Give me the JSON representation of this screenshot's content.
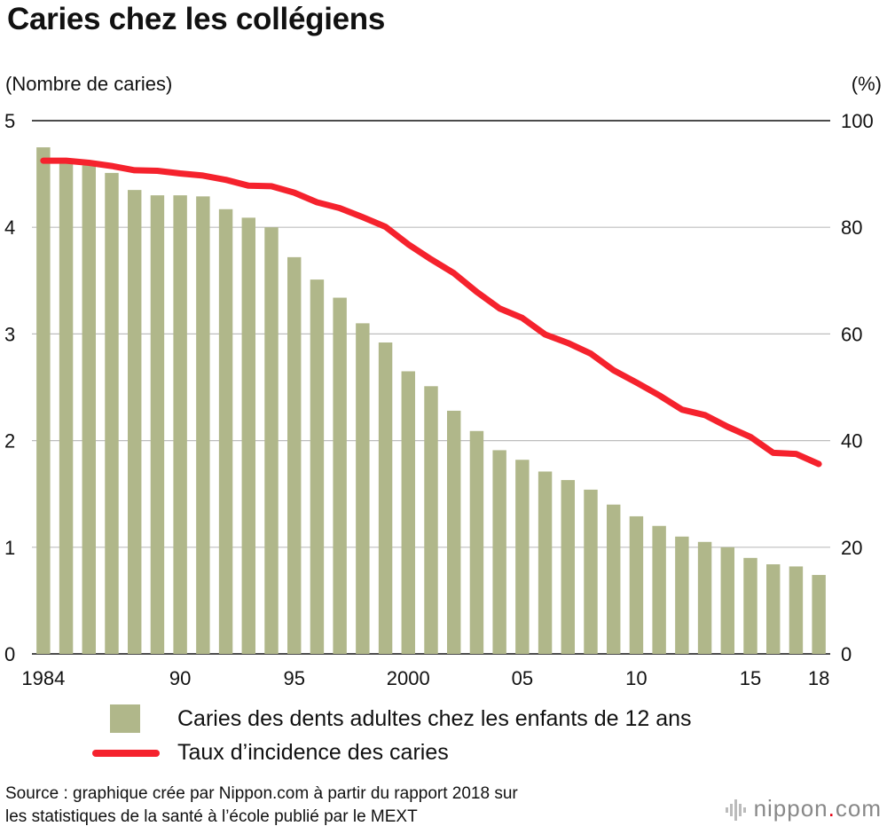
{
  "chart_data": {
    "type": "bar+line",
    "title": "Caries chez les collégiens",
    "ylabel_left": "(Nombre de caries)",
    "ylabel_right": "(%)",
    "ylim_left": [
      0,
      5
    ],
    "ylim_right": [
      0,
      100
    ],
    "yticks_left": [
      "0",
      "1",
      "2",
      "3",
      "4",
      "5"
    ],
    "yticks_right": [
      "0",
      "20",
      "40",
      "60",
      "80",
      "100"
    ],
    "years": [
      1984,
      1985,
      1986,
      1987,
      1988,
      1989,
      1990,
      1991,
      1992,
      1993,
      1994,
      1995,
      1996,
      1997,
      1998,
      1999,
      2000,
      2001,
      2002,
      2003,
      2004,
      2005,
      2006,
      2007,
      2008,
      2009,
      2010,
      2011,
      2012,
      2013,
      2014,
      2015,
      2016,
      2017,
      2018
    ],
    "xtick_labels": [
      {
        "year": 1984,
        "label": "1984"
      },
      {
        "year": 1990,
        "label": "90"
      },
      {
        "year": 1995,
        "label": "95"
      },
      {
        "year": 2000,
        "label": "2000"
      },
      {
        "year": 2005,
        "label": "05"
      },
      {
        "year": 2010,
        "label": "10"
      },
      {
        "year": 2015,
        "label": "15"
      },
      {
        "year": 2018,
        "label": "18"
      }
    ],
    "series": [
      {
        "name": "Caries des dents adultes chez les enfants de 12 ans",
        "type": "bar",
        "axis": "left",
        "color": "#b0b78a",
        "values": [
          4.75,
          4.63,
          4.58,
          4.51,
          4.35,
          4.3,
          4.3,
          4.29,
          4.17,
          4.09,
          4.0,
          3.72,
          3.51,
          3.34,
          3.1,
          2.92,
          2.65,
          2.51,
          2.28,
          2.09,
          1.91,
          1.82,
          1.71,
          1.63,
          1.54,
          1.4,
          1.29,
          1.2,
          1.1,
          1.05,
          1.0,
          0.9,
          0.84,
          0.82,
          0.74
        ]
      },
      {
        "name": "Taux d’incidence des caries",
        "type": "line",
        "axis": "right",
        "color": "#f5222d",
        "values": [
          92.5,
          92.5,
          92.1,
          91.5,
          90.7,
          90.6,
          90.1,
          89.7,
          88.9,
          87.8,
          87.7,
          86.5,
          84.7,
          83.6,
          81.9,
          80.1,
          76.8,
          74.0,
          71.4,
          67.9,
          64.8,
          63.0,
          59.9,
          58.3,
          56.3,
          53.2,
          50.9,
          48.5,
          45.8,
          44.8,
          42.6,
          40.7,
          37.7,
          37.5,
          35.6
        ]
      }
    ]
  },
  "source": {
    "line1": "Source : graphique crée par Nippon.com à partir du rapport 2018 sur",
    "line2": "les statistiques de la santé à l’école publié par le MEXT"
  },
  "brand": {
    "name": "nippon",
    "dot_com": ".com",
    "accent_color": "#e60012"
  }
}
